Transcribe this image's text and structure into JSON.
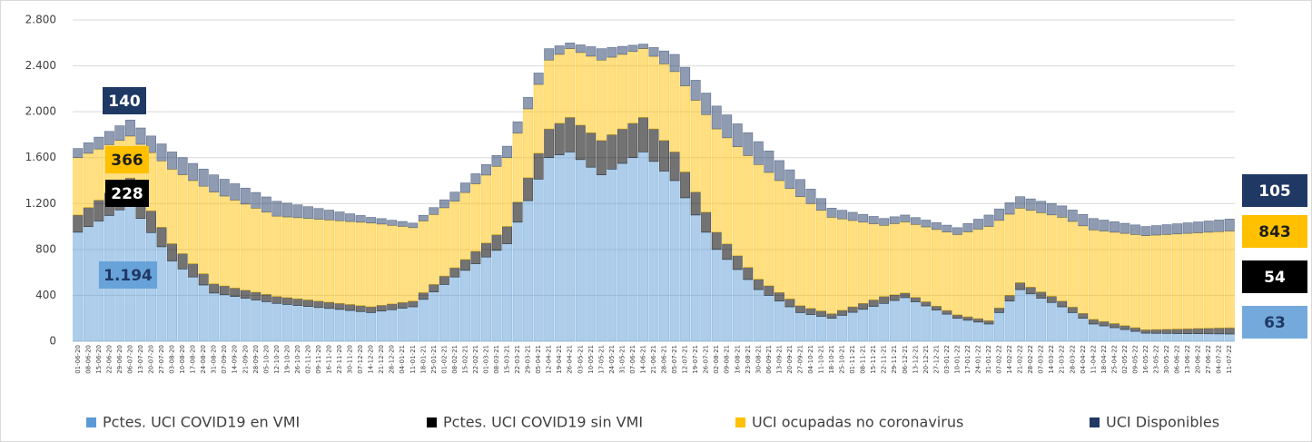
{
  "chart_data": {
    "type": "stacked-bar",
    "categories": [
      "01-06-20",
      "08-06-20",
      "15-06-20",
      "22-06-20",
      "29-06-20",
      "06-07-20",
      "13-07-20",
      "20-07-20",
      "27-07-20",
      "03-08-20",
      "10-08-20",
      "17-08-20",
      "24-08-20",
      "31-08-20",
      "07-09-20",
      "14-09-20",
      "21-09-20",
      "28-09-20",
      "05-10-20",
      "12-10-20",
      "19-10-20",
      "26-10-20",
      "02-11-20",
      "09-11-20",
      "16-11-20",
      "23-11-20",
      "30-11-20",
      "07-12-20",
      "14-12-20",
      "21-12-20",
      "28-12-20",
      "04-01-21",
      "11-01-21",
      "18-01-21",
      "25-01-21",
      "01-02-21",
      "08-02-21",
      "15-02-21",
      "22-02-21",
      "01-03-21",
      "08-03-21",
      "15-03-21",
      "22-03-21",
      "29-03-21",
      "05-04-21",
      "12-04-21",
      "19-04-21",
      "26-04-21",
      "03-05-21",
      "10-05-21",
      "17-05-21",
      "24-05-21",
      "31-05-21",
      "07-06-21",
      "14-06-21",
      "21-06-21",
      "28-06-21",
      "05-07-21",
      "12-07-21",
      "19-07-21",
      "26-07-21",
      "02-08-21",
      "09-08-21",
      "16-08-21",
      "23-08-21",
      "30-08-21",
      "06-09-21",
      "13-09-21",
      "20-09-21",
      "27-09-21",
      "04-10-21",
      "11-10-21",
      "18-10-21",
      "25-10-21",
      "01-11-21",
      "08-11-21",
      "15-11-21",
      "22-11-21",
      "29-11-21",
      "06-12-21",
      "13-12-21",
      "20-12-21",
      "27-12-21",
      "03-01-22",
      "10-01-22",
      "17-01-22",
      "24-01-22",
      "31-01-22",
      "07-02-22",
      "14-02-22",
      "21-02-22",
      "28-02-22",
      "07-03-22",
      "14-03-22",
      "21-03-22",
      "28-03-22",
      "04-04-22",
      "11-04-22",
      "18-04-22",
      "25-04-22",
      "02-05-22",
      "09-05-22",
      "16-05-22",
      "23-05-22",
      "30-05-22",
      "06-06-22",
      "13-06-22",
      "20-06-22",
      "27-06-22",
      "04-07-22",
      "11-07-22"
    ],
    "series": [
      {
        "name": "Pctes. UCI COVID19 en VMI",
        "color": "#5b9bd5",
        "values": [
          950,
          999,
          1048,
          1096,
          1145,
          1194,
          1070,
          947,
          823,
          700,
          630,
          560,
          490,
          420,
          405,
          390,
          375,
          360,
          345,
          330,
          321,
          312,
          303,
          294,
          286,
          277,
          268,
          259,
          250,
          263,
          275,
          288,
          300,
          365,
          430,
          495,
          560,
          618,
          676,
          734,
          792,
          850,
          1038,
          1225,
          1413,
          1600,
          1625,
          1650,
          1583,
          1517,
          1450,
          1500,
          1550,
          1600,
          1650,
          1567,
          1483,
          1400,
          1250,
          1100,
          950,
          800,
          713,
          625,
          538,
          450,
          400,
          350,
          300,
          250,
          233,
          217,
          200,
          226,
          252,
          278,
          304,
          330,
          355,
          380,
          344,
          308,
          272,
          236,
          200,
          183,
          167,
          150,
          250,
          350,
          450,
          413,
          375,
          338,
          300,
          250,
          200,
          150,
          134,
          118,
          102,
          86,
          70,
          69,
          68,
          67,
          66,
          66,
          65,
          64,
          63
        ],
        "value_labels": [
          null,
          null,
          null,
          null,
          null,
          "1.194",
          null,
          null,
          null,
          null,
          null,
          null,
          null,
          null,
          null,
          null,
          null,
          null,
          null,
          null,
          null,
          null,
          null,
          null,
          null,
          null,
          null,
          null,
          null,
          null,
          null,
          null,
          null,
          null,
          null,
          null,
          null,
          null,
          null,
          null,
          null,
          null,
          null,
          null,
          null,
          null,
          null,
          null,
          null,
          null,
          null,
          null,
          null,
          null,
          null,
          null,
          null,
          null,
          null,
          null,
          null,
          null,
          null,
          null,
          null,
          null,
          null,
          null,
          null,
          null,
          null,
          null,
          null,
          null,
          null,
          null,
          null,
          null,
          null,
          null,
          null,
          null,
          null,
          null,
          null,
          null,
          null,
          null,
          null,
          null,
          null,
          null,
          null,
          null,
          null,
          null,
          null,
          null,
          null,
          null,
          null,
          null,
          null,
          null,
          null,
          null,
          null,
          null,
          null,
          null,
          "63"
        ]
      },
      {
        "name": "Pctes. UCI COVID19 sin VMI",
        "color": "#000000",
        "values": [
          150,
          166,
          181,
          197,
          212,
          228,
          209,
          189,
          170,
          150,
          133,
          115,
          98,
          80,
          77,
          73,
          70,
          67,
          63,
          60,
          59,
          58,
          57,
          56,
          54,
          53,
          52,
          51,
          50,
          50,
          50,
          50,
          50,
          58,
          65,
          73,
          80,
          94,
          108,
          122,
          136,
          150,
          175,
          200,
          225,
          250,
          275,
          300,
          300,
          300,
          300,
          300,
          300,
          300,
          300,
          283,
          267,
          250,
          225,
          200,
          175,
          150,
          135,
          120,
          105,
          90,
          83,
          75,
          68,
          60,
          53,
          47,
          40,
          44,
          48,
          52,
          56,
          60,
          50,
          40,
          38,
          36,
          34,
          32,
          30,
          30,
          30,
          30,
          40,
          50,
          60,
          58,
          55,
          53,
          50,
          47,
          43,
          40,
          38,
          36,
          34,
          32,
          30,
          33,
          36,
          39,
          42,
          45,
          48,
          51,
          54
        ],
        "value_labels": [
          null,
          null,
          null,
          null,
          null,
          "228",
          null,
          null,
          null,
          null,
          null,
          null,
          null,
          null,
          null,
          null,
          null,
          null,
          null,
          null,
          null,
          null,
          null,
          null,
          null,
          null,
          null,
          null,
          null,
          null,
          null,
          null,
          null,
          null,
          null,
          null,
          null,
          null,
          null,
          null,
          null,
          null,
          null,
          null,
          null,
          null,
          null,
          null,
          null,
          null,
          null,
          null,
          null,
          null,
          null,
          null,
          null,
          null,
          null,
          null,
          null,
          null,
          null,
          null,
          null,
          null,
          null,
          null,
          null,
          null,
          null,
          null,
          null,
          null,
          null,
          null,
          null,
          null,
          null,
          null,
          null,
          null,
          null,
          null,
          null,
          null,
          null,
          null,
          null,
          null,
          null,
          null,
          null,
          null,
          null,
          null,
          null,
          null,
          null,
          null,
          null,
          null,
          null,
          null,
          null,
          null,
          null,
          null,
          null,
          null,
          "54"
        ]
      },
      {
        "name": "UCI ocupadas no coronavirus",
        "color": "#ffc000",
        "values": [
          500,
          473,
          446,
          420,
          393,
          366,
          437,
          508,
          579,
          650,
          688,
          725,
          763,
          800,
          783,
          767,
          750,
          733,
          717,
          700,
          703,
          707,
          710,
          713,
          717,
          720,
          723,
          727,
          730,
          708,
          685,
          663,
          640,
          625,
          610,
          595,
          580,
          584,
          588,
          592,
          596,
          600,
          600,
          600,
          600,
          600,
          600,
          600,
          633,
          667,
          700,
          675,
          650,
          625,
          600,
          633,
          667,
          700,
          750,
          800,
          850,
          900,
          925,
          950,
          975,
          1000,
          988,
          975,
          963,
          950,
          913,
          877,
          840,
          796,
          752,
          708,
          664,
          620,
          620,
          620,
          636,
          652,
          668,
          684,
          700,
          740,
          780,
          820,
          763,
          707,
          650,
          670,
          690,
          710,
          730,
          747,
          763,
          780,
          788,
          796,
          804,
          812,
          820,
          823,
          826,
          829,
          832,
          834,
          837,
          840,
          843
        ],
        "value_labels": [
          null,
          null,
          null,
          null,
          null,
          "366",
          null,
          null,
          null,
          null,
          null,
          null,
          null,
          null,
          null,
          null,
          null,
          null,
          null,
          null,
          null,
          null,
          null,
          null,
          null,
          null,
          null,
          null,
          null,
          null,
          null,
          null,
          null,
          null,
          null,
          null,
          null,
          null,
          null,
          null,
          null,
          null,
          null,
          null,
          null,
          null,
          null,
          null,
          null,
          null,
          null,
          null,
          null,
          null,
          null,
          null,
          null,
          null,
          null,
          null,
          null,
          null,
          null,
          null,
          null,
          null,
          null,
          null,
          null,
          null,
          null,
          null,
          null,
          null,
          null,
          null,
          null,
          null,
          null,
          null,
          null,
          null,
          null,
          null,
          null,
          null,
          null,
          null,
          null,
          null,
          null,
          null,
          null,
          null,
          null,
          null,
          null,
          null,
          null,
          null,
          null,
          null,
          null,
          null,
          null,
          null,
          null,
          null,
          null,
          null,
          "843"
        ]
      },
      {
        "name": "UCI Disponibles",
        "color": "#1f3864",
        "values": [
          80,
          92,
          104,
          116,
          128,
          140,
          143,
          145,
          148,
          150,
          150,
          150,
          150,
          150,
          147,
          143,
          140,
          137,
          133,
          130,
          121,
          112,
          103,
          94,
          86,
          77,
          68,
          59,
          50,
          48,
          45,
          43,
          40,
          50,
          60,
          70,
          80,
          84,
          88,
          92,
          96,
          100,
          100,
          100,
          100,
          100,
          75,
          50,
          67,
          83,
          100,
          85,
          70,
          55,
          40,
          77,
          113,
          150,
          163,
          175,
          188,
          200,
          200,
          200,
          200,
          200,
          188,
          175,
          163,
          150,
          127,
          103,
          80,
          76,
          72,
          68,
          64,
          60,
          60,
          60,
          60,
          60,
          60,
          60,
          60,
          73,
          87,
          100,
          100,
          100,
          100,
          100,
          100,
          100,
          100,
          100,
          100,
          100,
          96,
          92,
          88,
          84,
          80,
          83,
          86,
          89,
          92,
          95,
          98,
          102,
          105
        ],
        "value_labels": [
          null,
          null,
          null,
          null,
          null,
          "140",
          null,
          null,
          null,
          null,
          null,
          null,
          null,
          null,
          null,
          null,
          null,
          null,
          null,
          null,
          null,
          null,
          null,
          null,
          null,
          null,
          null,
          null,
          null,
          null,
          null,
          null,
          null,
          null,
          null,
          null,
          null,
          null,
          null,
          null,
          null,
          null,
          null,
          null,
          null,
          null,
          null,
          null,
          null,
          null,
          null,
          null,
          null,
          null,
          null,
          null,
          null,
          null,
          null,
          null,
          null,
          null,
          null,
          null,
          null,
          null,
          null,
          null,
          null,
          null,
          null,
          null,
          null,
          null,
          null,
          null,
          null,
          null,
          null,
          null,
          null,
          null,
          null,
          null,
          null,
          null,
          null,
          null,
          null,
          null,
          null,
          null,
          null,
          null,
          null,
          null,
          null,
          null,
          null,
          null,
          null,
          null,
          null,
          null,
          null,
          null,
          null,
          null,
          null,
          null,
          "105"
        ]
      }
    ],
    "ylim": [
      0,
      2800
    ],
    "yticks": [
      0,
      400,
      800,
      {
        "value": 1200,
        "label": "1.200"
      },
      {
        "value": 1600,
        "label": "1.600"
      },
      {
        "value": 2000,
        "label": "2.000"
      },
      {
        "value": 2400,
        "label": "2.400"
      },
      {
        "value": 2800,
        "label": "2.800"
      }
    ],
    "grid": true,
    "legend": "bottom"
  }
}
